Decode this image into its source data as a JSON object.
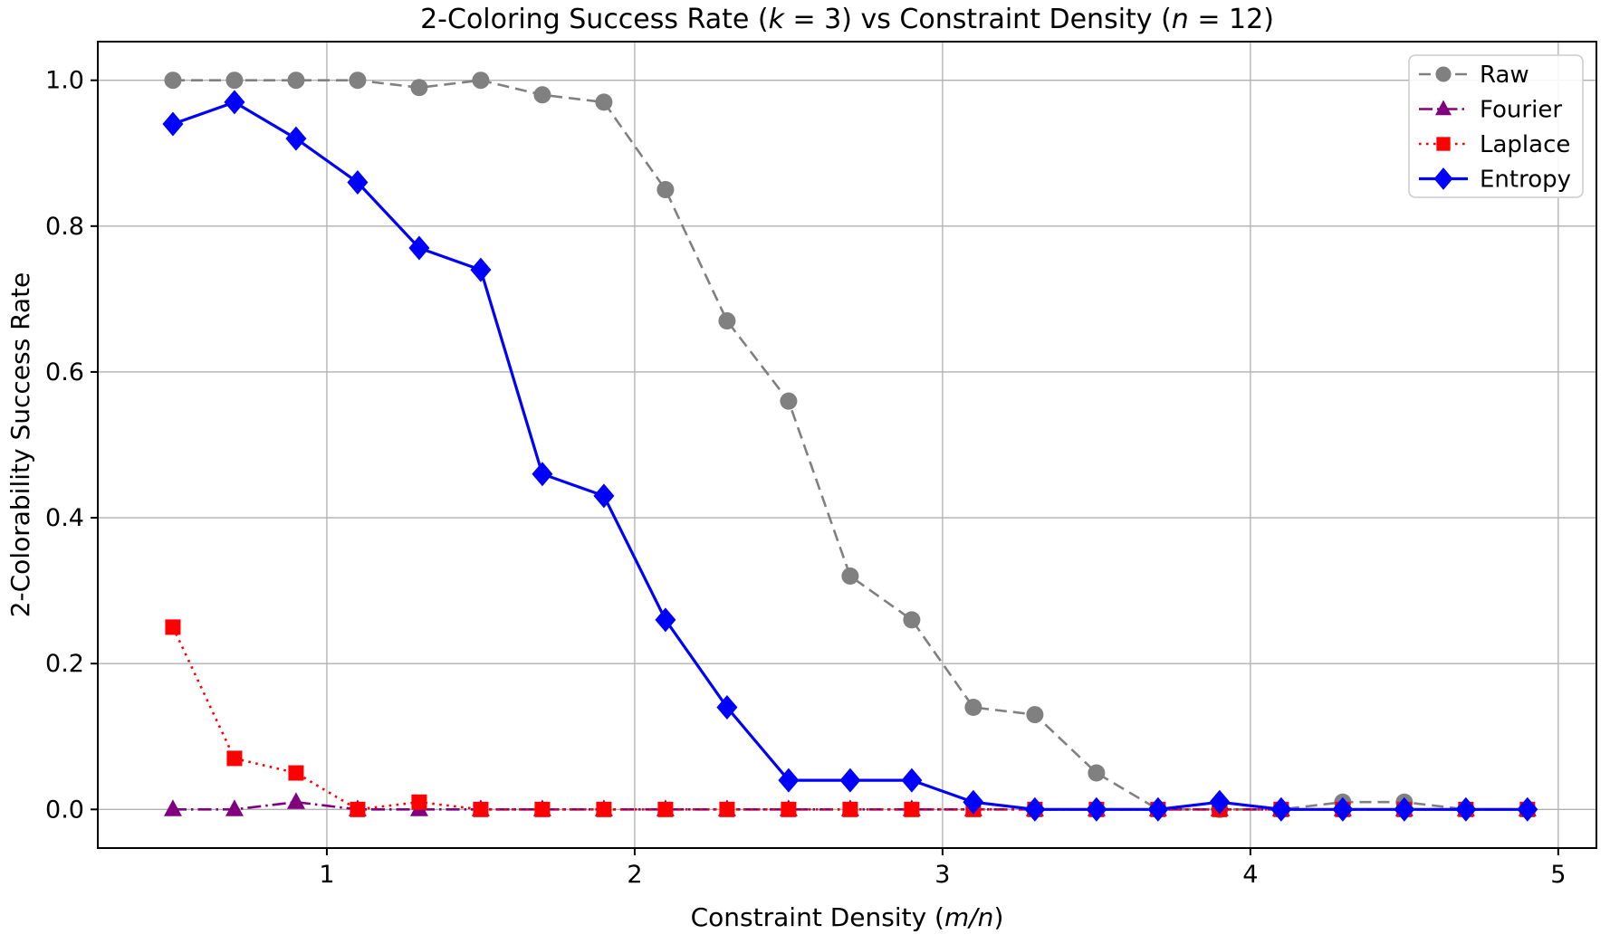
{
  "figure": {
    "title_segments": [
      {
        "text": "2-Coloring Success Rate (",
        "italic": false
      },
      {
        "text": "k",
        "italic": true
      },
      {
        "text": " = 3) vs Constraint Density (",
        "italic": false
      },
      {
        "text": "n",
        "italic": true
      },
      {
        "text": " = 12)",
        "italic": false
      }
    ],
    "xlabel_segments": [
      {
        "text": "Constraint Density (",
        "italic": false
      },
      {
        "text": "m/n",
        "italic": true
      },
      {
        "text": ")",
        "italic": false
      }
    ],
    "ylabel": "2-Colorability Success Rate"
  },
  "chart_data": {
    "type": "line",
    "title": "2-Coloring Success Rate (k = 3) vs Constraint Density (n = 12)",
    "xlabel": "Constraint Density (m/n)",
    "ylabel": "2-Colorability Success Rate",
    "x": [
      0.5,
      0.7,
      0.9,
      1.1,
      1.3,
      1.5,
      1.7,
      1.9,
      2.1,
      2.3,
      2.5,
      2.7,
      2.9,
      3.1,
      3.3,
      3.5,
      3.7,
      3.9,
      4.1,
      4.3,
      4.5,
      4.7,
      4.9
    ],
    "series": [
      {
        "name": "Raw",
        "color": "#808080",
        "linestyle": "dashed",
        "marker": "circle",
        "values": [
          1.0,
          1.0,
          1.0,
          1.0,
          0.99,
          1.0,
          0.98,
          0.97,
          0.85,
          0.67,
          0.56,
          0.32,
          0.26,
          0.14,
          0.13,
          0.05,
          0.0,
          0.0,
          0.0,
          0.01,
          0.01,
          0.0,
          0.0
        ]
      },
      {
        "name": "Fourier",
        "color": "#800080",
        "linestyle": "dashdot",
        "marker": "triangle",
        "values": [
          0.0,
          0.0,
          0.01,
          0.0,
          0.0,
          0.0,
          0.0,
          0.0,
          0.0,
          0.0,
          0.0,
          0.0,
          0.0,
          0.0,
          0.0,
          0.0,
          0.0,
          0.0,
          0.0,
          0.0,
          0.0,
          0.0,
          0.0
        ]
      },
      {
        "name": "Laplace",
        "color": "#ff0000",
        "linestyle": "dotted",
        "marker": "square",
        "values": [
          0.25,
          0.07,
          0.05,
          0.0,
          0.01,
          0.0,
          0.0,
          0.0,
          0.0,
          0.0,
          0.0,
          0.0,
          0.0,
          0.0,
          0.0,
          0.0,
          0.0,
          0.0,
          0.0,
          0.0,
          0.0,
          0.0,
          0.0
        ]
      },
      {
        "name": "Entropy",
        "color": "#0000ff",
        "linestyle": "solid",
        "marker": "diamond",
        "values": [
          0.94,
          0.97,
          0.92,
          0.86,
          0.77,
          0.74,
          0.46,
          0.43,
          0.26,
          0.14,
          0.04,
          0.04,
          0.04,
          0.01,
          0.0,
          0.0,
          0.0,
          0.01,
          0.0,
          0.0,
          0.0,
          0.0,
          0.0
        ]
      }
    ],
    "xticks": {
      "values": [
        1,
        2,
        3,
        4,
        5
      ],
      "labels": [
        "1",
        "2",
        "3",
        "4",
        "5"
      ]
    },
    "yticks": {
      "values": [
        0.0,
        0.2,
        0.4,
        0.6,
        0.8,
        1.0
      ],
      "labels": [
        "0.0",
        "0.2",
        "0.4",
        "0.6",
        "0.8",
        "1.0"
      ]
    },
    "xlim": [
      0.256,
      5.124
    ],
    "ylim": [
      -0.053,
      1.053
    ],
    "grid": true,
    "legend": {
      "position": "upper right",
      "entries": [
        "Raw",
        "Fourier",
        "Laplace",
        "Entropy"
      ]
    },
    "colors": {
      "grid": "#b0b0b0",
      "spine": "#000000",
      "background": "#ffffff",
      "legend_border": "#cccccc",
      "text": "#000000"
    }
  }
}
